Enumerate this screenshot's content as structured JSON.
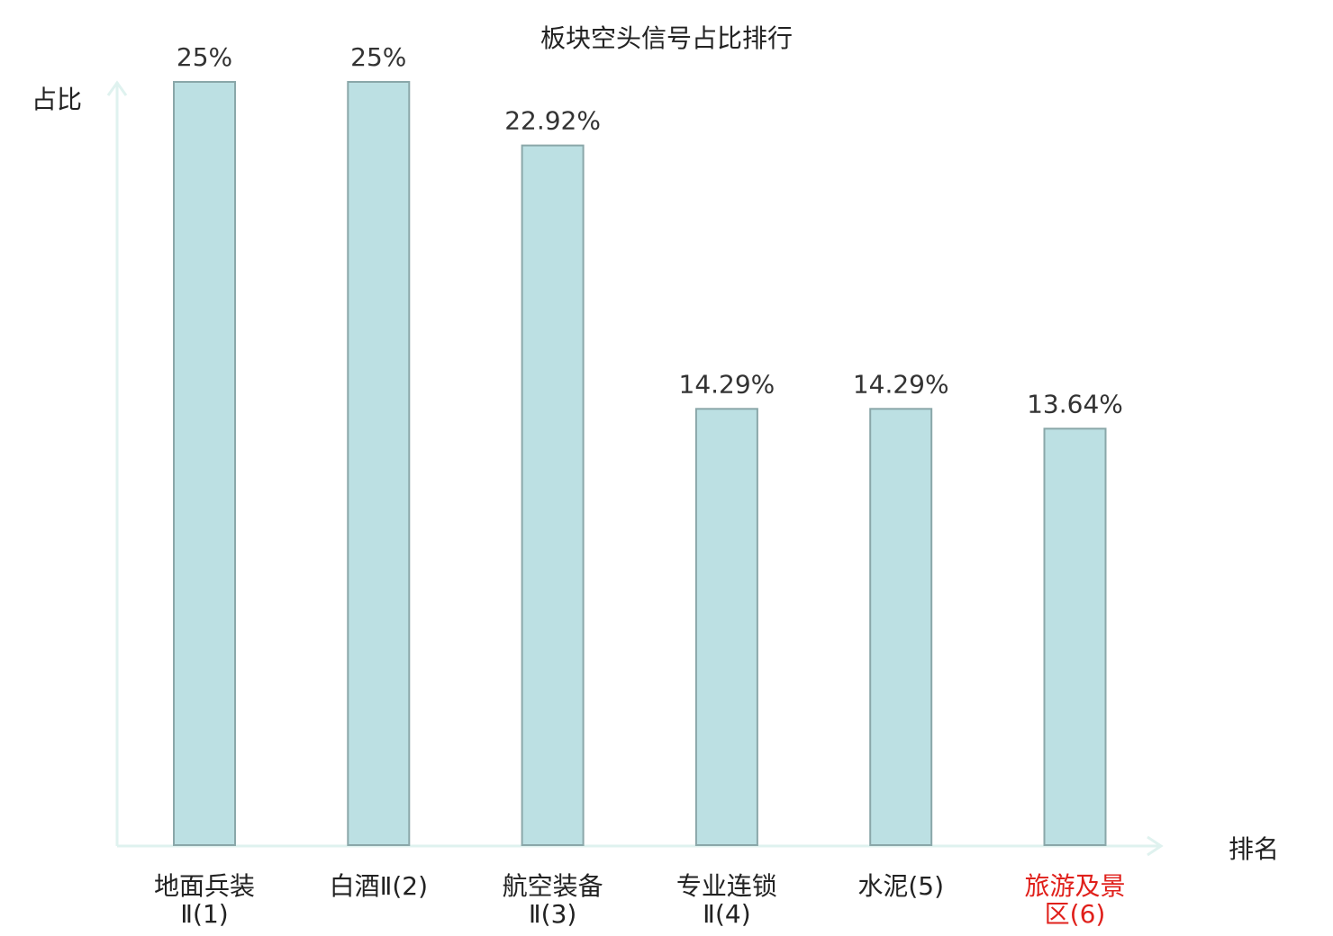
{
  "chart_data": {
    "type": "bar",
    "title": "板块空头信号占比排行",
    "xlabel": "排名",
    "ylabel": "占比",
    "categories": [
      [
        "地面兵装",
        "Ⅱ(1)"
      ],
      [
        "白酒Ⅱ(2)"
      ],
      [
        "航空装备",
        "Ⅱ(3)"
      ],
      [
        "专业连锁",
        "Ⅱ(4)"
      ],
      [
        "水泥(5)"
      ],
      [
        "旅游及景",
        "区(6)"
      ]
    ],
    "values": [
      25,
      25,
      22.92,
      14.29,
      14.29,
      13.64
    ],
    "value_labels": [
      "25%",
      "25%",
      "22.92%",
      "14.29%",
      "14.29%",
      "13.64%"
    ],
    "ylim": [
      0,
      25
    ],
    "grid": false,
    "colors": {
      "bar_fill": "#bce0e3",
      "bar_stroke": "#8aa7a9",
      "axis": "#dff2ef",
      "text": "#222222",
      "highlight_label": "#e0201b"
    },
    "highlight_index": 5
  }
}
